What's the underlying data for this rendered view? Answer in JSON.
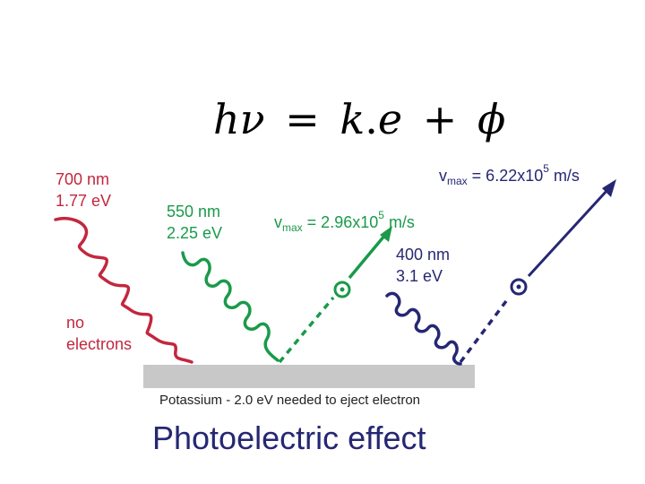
{
  "equation": {
    "h": "h",
    "nu": "ν",
    "equals": "=",
    "k": "k",
    "dot": ".",
    "e": "e",
    "plus": "+",
    "phi": "ϕ"
  },
  "red_photon": {
    "wavelength": "700 nm",
    "energy": "1.77 eV",
    "result_line1": "no",
    "result_line2": "electrons"
  },
  "green_photon": {
    "wavelength": "550 nm",
    "energy": "2.25 eV",
    "vmax_label": "v",
    "vmax_sub": "max",
    "vmax_value": " = 2.96x10",
    "vmax_exp": "5",
    "vmax_unit": " m/s"
  },
  "violet_photon": {
    "wavelength": "400 nm",
    "energy": "3.1 eV",
    "vmax_label": "v",
    "vmax_sub": "max",
    "vmax_value": " = 6.22x10",
    "vmax_exp": "5",
    "vmax_unit": " m/s"
  },
  "surface_caption": "Potassium - 2.0 eV needed to eject electron",
  "title": "Photoelectric effect",
  "colors": {
    "red": "#c2273e",
    "green": "#1a9a4a",
    "navy": "#262773",
    "surface": "#c8c8c8"
  }
}
